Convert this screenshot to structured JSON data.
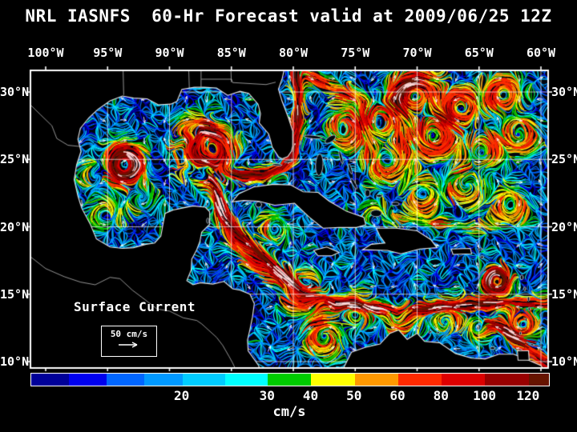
{
  "title": "NRL IASNFS  60-Hr Forecast valid at 2009/06/25 12Z",
  "map": {
    "lon_ticks": [
      {
        "label": "100°W",
        "lon": 100
      },
      {
        "label": "95°W",
        "lon": 95
      },
      {
        "label": "90°W",
        "lon": 90
      },
      {
        "label": "85°W",
        "lon": 85
      },
      {
        "label": "80°W",
        "lon": 80
      },
      {
        "label": "75°W",
        "lon": 75
      },
      {
        "label": "70°W",
        "lon": 70
      },
      {
        "label": "65°W",
        "lon": 65
      },
      {
        "label": "60°W",
        "lon": 60
      }
    ],
    "lat_ticks": [
      {
        "label": "30°N",
        "lat": 30
      },
      {
        "label": "25°N",
        "lat": 25
      },
      {
        "label": "20°N",
        "lat": 20
      },
      {
        "label": "15°N",
        "lat": 15
      },
      {
        "label": "10°N",
        "lat": 10
      }
    ],
    "annotation": {
      "title": "Surface Current",
      "scale_label": "50 cm/s"
    }
  },
  "colorbar": {
    "units": "cm/s",
    "segments": [
      {
        "color": "#000099",
        "min": 0,
        "width": 0.073
      },
      {
        "color": "#0000EE",
        "min": 5,
        "width": 0.073
      },
      {
        "color": "#0066FF",
        "min": 10,
        "width": 0.073
      },
      {
        "color": "#0099FF",
        "min": 15,
        "width": 0.073
      },
      {
        "color": "#00CCFF",
        "min": 20,
        "width": 0.0825
      },
      {
        "color": "#00FFFF",
        "min": 25,
        "width": 0.0825
      },
      {
        "color": "#00CC00",
        "min": 30,
        "width": 0.084
      },
      {
        "color": "#FFFF00",
        "min": 40,
        "width": 0.084
      },
      {
        "color": "#FF9900",
        "min": 50,
        "width": 0.084
      },
      {
        "color": "#FF2A00",
        "min": 60,
        "width": 0.084
      },
      {
        "color": "#DD0000",
        "min": 80,
        "width": 0.084
      },
      {
        "color": "#990000",
        "min": 100,
        "width": 0.084
      },
      {
        "color": "#661400",
        "min": 120,
        "width": 0.039
      }
    ],
    "tick_labels": [
      {
        "text": "20",
        "pos": 0.292
      },
      {
        "text": "30",
        "pos": 0.457
      },
      {
        "text": "40",
        "pos": 0.541
      },
      {
        "text": "50",
        "pos": 0.625
      },
      {
        "text": "60",
        "pos": 0.709
      },
      {
        "text": "80",
        "pos": 0.793
      },
      {
        "text": "100",
        "pos": 0.877
      },
      {
        "text": "120",
        "pos": 0.961
      }
    ]
  }
}
